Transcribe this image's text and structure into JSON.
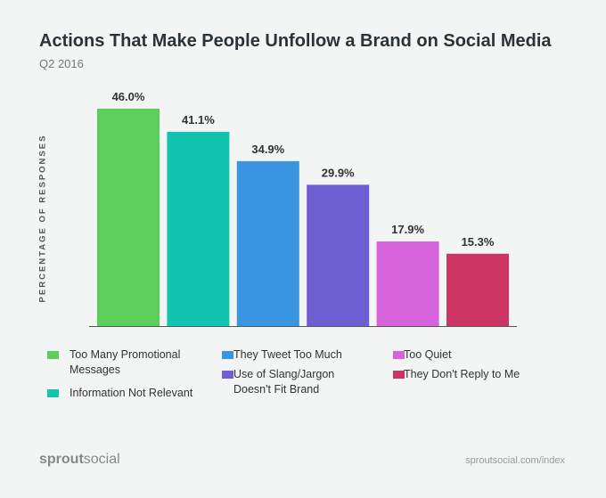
{
  "chart_data": {
    "type": "bar",
    "title": "Actions That Make People Unfollow a Brand on Social Media",
    "subtitle": "Q2 2016",
    "ylabel": "PERCENTAGE OF RESPONSES",
    "xlabel": "",
    "ylim": [
      0,
      46
    ],
    "grid": false,
    "legend_position": "bottom",
    "categories": [
      "Too Many Promotional Messages",
      "Information Not Relevant",
      "They Tweet Too Much",
      "Use of Slang/Jargon Doesn't Fit Brand",
      "Too Quiet",
      "They Don't Reply to Me"
    ],
    "values": [
      46.0,
      41.1,
      34.9,
      29.9,
      17.9,
      15.3
    ],
    "data_labels": [
      "46.0%",
      "41.1%",
      "34.9%",
      "29.9%",
      "17.9%",
      "15.3%"
    ],
    "colors": [
      "#5ccf5a",
      "#13c4b0",
      "#3a95e0",
      "#6f5fd3",
      "#d763dc",
      "#cc3463"
    ]
  },
  "legend": [
    {
      "line1": "Too Many Promotional",
      "line2": "Messages"
    },
    {
      "line1": "Information Not Relevant",
      "line2": ""
    },
    {
      "line1": "They Tweet Too Much",
      "line2": ""
    },
    {
      "line1": "Use of Slang/Jargon",
      "line2": "Doesn't Fit Brand"
    },
    {
      "line1": "Too Quiet",
      "line2": ""
    },
    {
      "line1": "They Don't Reply to Me",
      "line2": ""
    }
  ],
  "footer": {
    "logo_bold": "sprout",
    "logo_light": "social",
    "url": "sproutsocial.com/index"
  }
}
